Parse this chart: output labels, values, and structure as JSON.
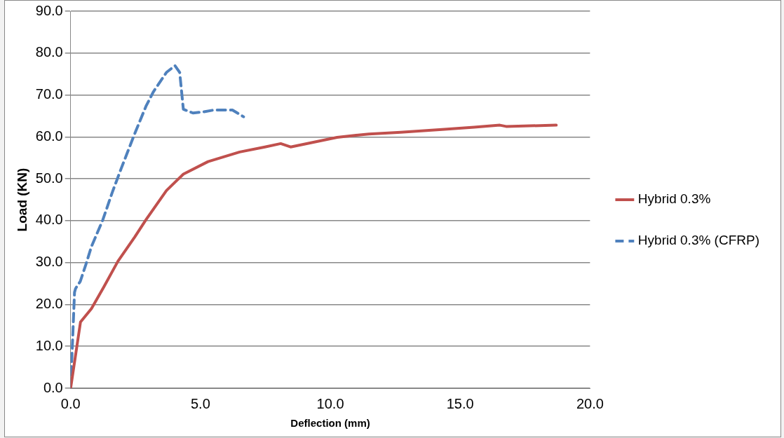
{
  "chart_data": {
    "type": "line",
    "xlabel": "Deflection (mm)",
    "ylabel": "Load (KN)",
    "xlim": [
      0,
      20
    ],
    "xticks": [
      {
        "value": 0,
        "label": "0.0"
      },
      {
        "value": 5,
        "label": "5.0"
      },
      {
        "value": 10,
        "label": "10.0"
      },
      {
        "value": 15,
        "label": "15.0"
      },
      {
        "value": 20,
        "label": "20.0"
      }
    ],
    "ylim": [
      0,
      90
    ],
    "yticks": [
      {
        "value": 0,
        "label": "0.0"
      },
      {
        "value": 10,
        "label": "10.0"
      },
      {
        "value": 20,
        "label": "20.0"
      },
      {
        "value": 30,
        "label": "30.0"
      },
      {
        "value": 40,
        "label": "40.0"
      },
      {
        "value": 50,
        "label": "50.0"
      },
      {
        "value": 60,
        "label": "60.0"
      },
      {
        "value": 70,
        "label": "70.0"
      },
      {
        "value": 80,
        "label": "80.0"
      },
      {
        "value": 90,
        "label": "90.0"
      }
    ],
    "grid": "y",
    "legend": "right",
    "marker": "none",
    "series": [
      {
        "name": "Hybrid 0.3%",
        "color": "#c0504d",
        "line_style": "solid",
        "x": [
          0,
          0.38,
          0.8,
          1.27,
          1.82,
          2.47,
          2.9,
          3.69,
          4.34,
          5.29,
          6.51,
          7.48,
          8.09,
          8.47,
          10.26,
          11.49,
          12.71,
          14.4,
          15.54,
          16.53,
          16.77,
          18.7
        ],
        "values": [
          0,
          15.8,
          19,
          24.1,
          30.3,
          36.1,
          40.2,
          47.2,
          51.1,
          54.1,
          56.4,
          57.6,
          58.4,
          57.6,
          59.9,
          60.7,
          61.1,
          61.8,
          62.3,
          62.8,
          62.5,
          62.8
        ]
      },
      {
        "name": "Hybrid 0.3% (CFRP)",
        "color": "#4f81bd",
        "line_style": "dashed",
        "x": [
          0,
          0.15,
          0.19,
          0.37,
          0.59,
          0.8,
          1.24,
          1.6,
          1.95,
          2.47,
          2.9,
          3.19,
          3.69,
          4.02,
          4.2,
          4.34,
          4.71,
          5.14,
          5.5,
          6.23,
          6.66
        ],
        "values": [
          0,
          22.9,
          23.8,
          25.5,
          29.6,
          33.8,
          40.2,
          46.7,
          52.5,
          60.8,
          67.3,
          70.8,
          75.4,
          77,
          75.4,
          66.6,
          65.7,
          66,
          66.4,
          66.4,
          64.8
        ]
      }
    ]
  }
}
